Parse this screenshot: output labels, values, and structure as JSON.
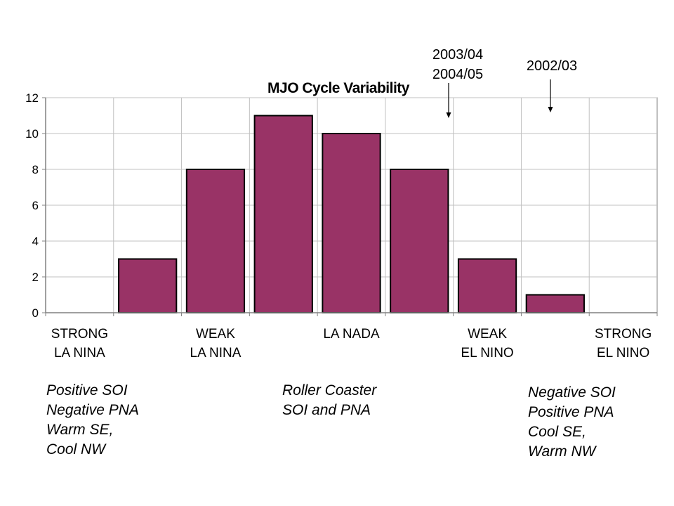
{
  "chart_data": {
    "type": "bar",
    "title": "MJO Cycle Variability",
    "categories": [
      "",
      "",
      "",
      "",
      "",
      "",
      "",
      "",
      ""
    ],
    "values": [
      0,
      3,
      8,
      11,
      10,
      8,
      3,
      1,
      0
    ],
    "ylim": [
      0,
      12
    ],
    "yticks": [
      0,
      2,
      4,
      6,
      8,
      10,
      12
    ],
    "grid": true,
    "bar_color": "#993366",
    "x_group_labels": [
      [
        "STRONG",
        "LA NINA"
      ],
      [
        "WEAK",
        "LA NINA"
      ],
      [
        "LA NADA"
      ],
      [
        "WEAK",
        "EL NINO"
      ],
      [
        "STRONG",
        "EL NINO"
      ]
    ],
    "annotations": [
      {
        "lines": [
          "2003/04",
          "2004/05"
        ]
      },
      {
        "lines": [
          "2002/03"
        ]
      }
    ]
  },
  "notes": {
    "left": "Positive SOI\nNegative PNA\nWarm SE,\nCool NW",
    "center": "Roller Coaster\nSOI and PNA",
    "right": "Negative SOI\nPositive PNA\nCool SE,\nWarm NW"
  }
}
